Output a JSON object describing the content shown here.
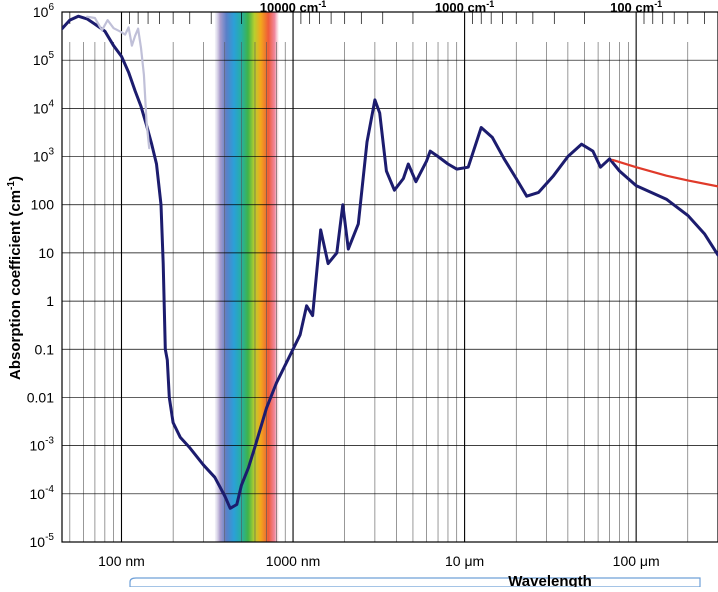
{
  "chart_data": {
    "type": "line",
    "xlabel": "Wavelength",
    "ylabel": "Absorption coefficient (cm",
    "ylabel_sup": "-1",
    "ylabel_suffix": ")",
    "xscale": "log",
    "yscale": "log",
    "xlim": [
      4.5e-08,
      0.0003
    ],
    "ylim": [
      1e-05,
      1000000.0
    ],
    "grid": true,
    "x_ticks": [
      {
        "value": 1e-07,
        "label": "100 nm"
      },
      {
        "value": 1e-06,
        "label": "1000 nm"
      },
      {
        "value": 1e-05,
        "label": "10 μm"
      },
      {
        "value": 0.0001,
        "label": "100 μm"
      }
    ],
    "top_ticks": [
      {
        "value": 1e-06,
        "label": "10000 cm",
        "sup": "-1"
      },
      {
        "value": 1e-05,
        "label": "1000 cm",
        "sup": "-1"
      },
      {
        "value": 0.0001,
        "label": "100 cm",
        "sup": "-1"
      }
    ],
    "y_ticks": [
      {
        "value": 1000000.0,
        "base": "10",
        "sup": "6"
      },
      {
        "value": 100000.0,
        "base": "10",
        "sup": "5"
      },
      {
        "value": 10000.0,
        "base": "10",
        "sup": "4"
      },
      {
        "value": 1000.0,
        "base": "10",
        "sup": "3"
      },
      {
        "value": 100,
        "base": "100",
        "sup": ""
      },
      {
        "value": 10,
        "base": "10",
        "sup": ""
      },
      {
        "value": 1,
        "base": "1",
        "sup": ""
      },
      {
        "value": 0.1,
        "base": "0.1",
        "sup": ""
      },
      {
        "value": 0.01,
        "base": "0.01",
        "sup": ""
      },
      {
        "value": 0.001,
        "base": "10",
        "sup": "-3"
      },
      {
        "value": 0.0001,
        "base": "10",
        "sup": "-4"
      },
      {
        "value": 1e-05,
        "base": "10",
        "sup": "-5"
      }
    ],
    "visible_band": [
      3.8e-07,
      7.6e-07
    ],
    "series": [
      {
        "color": "#1c1c6e",
        "points": [
          [
            4.5e-08,
            450000
          ],
          [
            5e-08,
            680000
          ],
          [
            5.6e-08,
            820000
          ],
          [
            6.3e-08,
            720000
          ],
          [
            7e-08,
            560000
          ],
          [
            8e-08,
            400000
          ],
          [
            9e-08,
            200000
          ],
          [
            1e-07,
            120000
          ],
          [
            1.1e-07,
            56000
          ],
          [
            1.2e-07,
            23000
          ],
          [
            1.3e-07,
            11000
          ],
          [
            1.4e-07,
            4400
          ],
          [
            1.5e-07,
            1800
          ],
          [
            1.6e-07,
            700
          ],
          [
            1.7e-07,
            100
          ],
          [
            1.75e-07,
            6
          ],
          [
            1.8e-07,
            0.1
          ],
          [
            1.85e-07,
            0.06
          ],
          [
            1.9e-07,
            0.01
          ],
          [
            2e-07,
            0.003
          ],
          [
            2.2e-07,
            0.0015
          ],
          [
            2.5e-07,
            0.0009
          ],
          [
            3e-07,
            0.0004
          ],
          [
            3.5e-07,
            0.00022
          ],
          [
            4e-07,
            9e-05
          ],
          [
            4.3e-07,
            5e-05
          ],
          [
            4.7e-07,
            6e-05
          ],
          [
            5e-07,
            0.00015
          ],
          [
            5.5e-07,
            0.00035
          ],
          [
            6e-07,
            0.00095
          ],
          [
            7e-07,
            0.006
          ],
          [
            8e-07,
            0.02
          ],
          [
            1e-06,
            0.1
          ],
          [
            1.1e-06,
            0.2
          ],
          [
            1.2e-06,
            0.8
          ],
          [
            1.3e-06,
            0.5
          ],
          [
            1.45e-06,
            30
          ],
          [
            1.6e-06,
            6
          ],
          [
            1.8e-06,
            10
          ],
          [
            1.95e-06,
            100
          ],
          [
            2.1e-06,
            12
          ],
          [
            2.4e-06,
            40
          ],
          [
            2.7e-06,
            2000
          ],
          [
            3e-06,
            15000
          ],
          [
            3.2e-06,
            8000
          ],
          [
            3.5e-06,
            500
          ],
          [
            3.9e-06,
            200
          ],
          [
            4.4e-06,
            350
          ],
          [
            4.7e-06,
            700
          ],
          [
            5.2e-06,
            300
          ],
          [
            6e-06,
            800
          ],
          [
            6.3e-06,
            1300
          ],
          [
            7e-06,
            1000
          ],
          [
            8e-06,
            700
          ],
          [
            9e-06,
            550
          ],
          [
            1.05e-05,
            600
          ],
          [
            1.25e-05,
            4000
          ],
          [
            1.45e-05,
            2500
          ],
          [
            1.7e-05,
            900
          ],
          [
            2e-05,
            350
          ],
          [
            2.3e-05,
            150
          ],
          [
            2.7e-05,
            180
          ],
          [
            3.3e-05,
            400
          ],
          [
            4e-05,
            1000
          ],
          [
            4.8e-05,
            1800
          ],
          [
            5.6e-05,
            1300
          ],
          [
            6.2e-05,
            600
          ],
          [
            7e-05,
            900
          ],
          [
            8e-05,
            500
          ],
          [
            0.0001,
            250
          ],
          [
            0.00015,
            130
          ],
          [
            0.0002,
            60
          ],
          [
            0.00025,
            25
          ],
          [
            0.0003,
            9
          ]
        ]
      },
      {
        "color": "#c0c0d8",
        "points": [
          [
            6.3e-08,
            800000
          ],
          [
            7e-08,
            750000
          ],
          [
            7.7e-08,
            420000
          ],
          [
            8.3e-08,
            680000
          ],
          [
            9e-08,
            460000
          ],
          [
            1e-07,
            380000
          ],
          [
            1.05e-07,
            340000
          ],
          [
            1.1e-07,
            480000
          ],
          [
            1.15e-07,
            200000
          ],
          [
            1.2e-07,
            320000
          ],
          [
            1.25e-07,
            450000
          ],
          [
            1.3e-07,
            180000
          ],
          [
            1.35e-07,
            50000
          ],
          [
            1.4e-07,
            5000
          ],
          [
            1.45e-07,
            1500
          ]
        ]
      },
      {
        "color": "#e03a2a",
        "points": [
          [
            7.3e-05,
            850
          ],
          [
            0.0001,
            600
          ],
          [
            0.00015,
            400
          ],
          [
            0.0002,
            320
          ],
          [
            0.0003,
            240
          ]
        ]
      }
    ]
  }
}
